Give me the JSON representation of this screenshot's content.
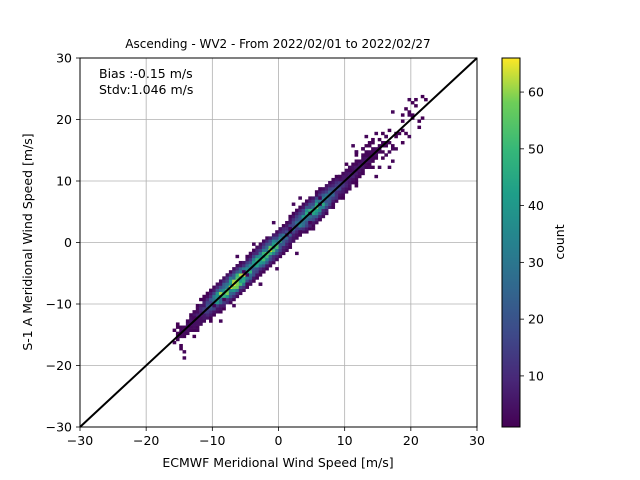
{
  "chart_data": {
    "type": "heatmap",
    "title": "Ascending - WV2 - From 2022/02/01 to 2022/02/27",
    "xlabel": "ECMWF Meridional Wind Speed [m/s]",
    "ylabel": "S-1 A Meridional Wind Speed [m/s]",
    "xlim": [
      -30,
      30
    ],
    "ylim": [
      -30,
      30
    ],
    "xticks": [
      -30,
      -20,
      -10,
      0,
      10,
      20,
      30
    ],
    "yticks": [
      -30,
      -20,
      -10,
      0,
      10,
      20,
      30
    ],
    "xtick_labels": [
      "−30",
      "−20",
      "−10",
      "0",
      "10",
      "20",
      "30"
    ],
    "ytick_labels": [
      "−30",
      "−20",
      "−10",
      "0",
      "10",
      "20",
      "30"
    ],
    "grid": true,
    "annotations": [
      "Bias :-0.15 m/s",
      "Stdv:1.046 m/s"
    ],
    "identity_line": {
      "from": [
        -30,
        -30
      ],
      "to": [
        30,
        30
      ],
      "color": "#000000"
    },
    "colorbar": {
      "label": "count",
      "min": 1,
      "max": 66,
      "ticks": [
        10,
        20,
        30,
        40,
        50,
        60
      ],
      "colormap": "viridis"
    },
    "bin_width": 0.5,
    "density_model": {
      "x_range": [
        -16,
        22
      ],
      "residual_sigma": 1.05,
      "peaks": [
        {
          "x": -7,
          "y": -7,
          "count": 66
        },
        {
          "x": 5,
          "y": 5,
          "count": 40
        },
        {
          "x": -2,
          "y": -2,
          "count": 45
        }
      ]
    }
  }
}
